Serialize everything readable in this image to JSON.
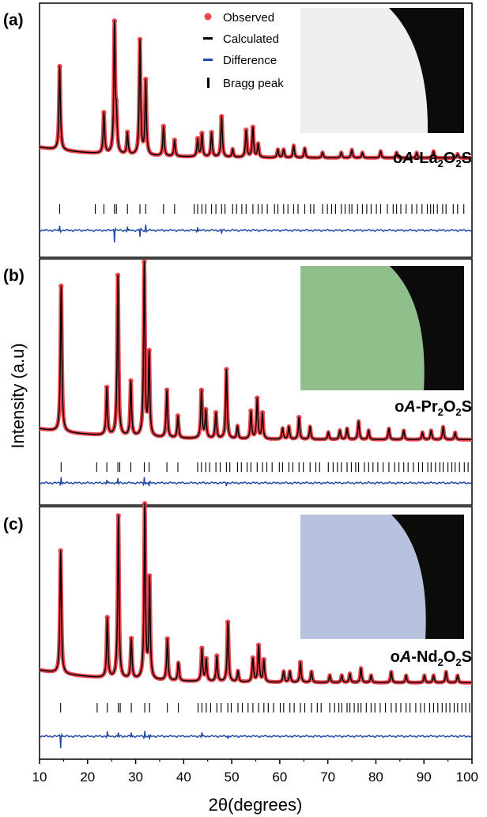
{
  "colors": {
    "observed": "#e8474f",
    "calculated": "#000000",
    "difference": "#2149a8",
    "bragg": "#000000",
    "frame": "#000000"
  },
  "figure": {
    "ylabel": "Intensity (a.u)",
    "xlabel": "2θ(degrees)",
    "xlim": [
      10,
      100
    ],
    "xticks": [
      "10",
      "20",
      "30",
      "40",
      "50",
      "60",
      "70",
      "80",
      "90",
      "100"
    ]
  },
  "legend": {
    "items": [
      {
        "label": "Observed",
        "marker": "dot",
        "color": "#e8474f"
      },
      {
        "label": "Calculated",
        "marker": "dash",
        "color": "#000000"
      },
      {
        "label": "Difference",
        "marker": "dash",
        "color": "#2149a8"
      },
      {
        "label": "Bragg peak",
        "marker": "tick",
        "color": "#000000"
      }
    ]
  },
  "chart_data": [
    {
      "type": "line",
      "panel_label": "(a)",
      "sample": {
        "prefix": "o",
        "italic": "A",
        "rest": "-La",
        "sub1": "2",
        "mid": "O",
        "sub2": "2",
        "end": "S"
      },
      "photo_color": "#efefef",
      "baseline": 0.08,
      "peaks": [
        {
          "x": 14.2,
          "h": 0.62
        },
        {
          "x": 23.4,
          "h": 0.3
        },
        {
          "x": 25.6,
          "h": 0.95
        },
        {
          "x": 26.0,
          "h": 0.25
        },
        {
          "x": 28.3,
          "h": 0.16
        },
        {
          "x": 30.9,
          "h": 0.85
        },
        {
          "x": 32.1,
          "h": 0.55
        },
        {
          "x": 35.8,
          "h": 0.22
        },
        {
          "x": 38.1,
          "h": 0.12
        },
        {
          "x": 42.9,
          "h": 0.13
        },
        {
          "x": 43.8,
          "h": 0.17
        },
        {
          "x": 45.8,
          "h": 0.18
        },
        {
          "x": 47.9,
          "h": 0.3
        },
        {
          "x": 50.2,
          "h": 0.06
        },
        {
          "x": 53.0,
          "h": 0.2
        },
        {
          "x": 54.4,
          "h": 0.22
        },
        {
          "x": 55.5,
          "h": 0.1
        },
        {
          "x": 59.6,
          "h": 0.06
        },
        {
          "x": 60.8,
          "h": 0.06
        },
        {
          "x": 62.9,
          "h": 0.09
        },
        {
          "x": 65.2,
          "h": 0.07
        },
        {
          "x": 68.9,
          "h": 0.04
        },
        {
          "x": 72.8,
          "h": 0.04
        },
        {
          "x": 75.0,
          "h": 0.06
        },
        {
          "x": 77.2,
          "h": 0.04
        },
        {
          "x": 81.0,
          "h": 0.05
        },
        {
          "x": 84.3,
          "h": 0.04
        },
        {
          "x": 88.5,
          "h": 0.04
        },
        {
          "x": 92.0,
          "h": 0.05
        },
        {
          "x": 97.0,
          "h": 0.03
        }
      ],
      "bragg": [
        14.2,
        21.6,
        23.4,
        25.6,
        26.0,
        28.3,
        30.9,
        32.1,
        35.8,
        38.1,
        42.2,
        42.9,
        43.8,
        44.6,
        45.8,
        46.7,
        47.9,
        48.6,
        50.2,
        51.0,
        52.1,
        53.0,
        54.4,
        55.5,
        56.3,
        57.4,
        58.9,
        59.6,
        60.8,
        61.7,
        62.9,
        63.8,
        65.2,
        66.4,
        67.1,
        68.9,
        69.9,
        70.8,
        71.6,
        72.8,
        73.6,
        74.5,
        75.0,
        76.2,
        77.2,
        78.1,
        79.0,
        80.1,
        81.0,
        82.4,
        83.6,
        84.3,
        85.2,
        86.3,
        87.5,
        88.5,
        89.6,
        90.7,
        91.4,
        92.0,
        92.8,
        93.9,
        94.6,
        96.1,
        97.0,
        98.3
      ],
      "diff_spikes": [
        {
          "x": 14.2,
          "a": 6
        },
        {
          "x": 25.6,
          "a": -14
        },
        {
          "x": 28.3,
          "a": 5
        },
        {
          "x": 30.9,
          "a": -8
        },
        {
          "x": 32.1,
          "a": 7
        },
        {
          "x": 42.9,
          "a": 5
        },
        {
          "x": 47.9,
          "a": -4
        }
      ]
    },
    {
      "type": "line",
      "panel_label": "(b)",
      "sample": {
        "prefix": "o",
        "italic": "A",
        "rest": "-Pr",
        "sub1": "2",
        "mid": "O",
        "sub2": "2",
        "end": "S"
      },
      "photo_color": "#8fbf8a",
      "baseline": 0.06,
      "peaks": [
        {
          "x": 14.5,
          "h": 0.8
        },
        {
          "x": 24.0,
          "h": 0.26
        },
        {
          "x": 26.3,
          "h": 0.88
        },
        {
          "x": 29.0,
          "h": 0.3
        },
        {
          "x": 31.8,
          "h": 0.95
        },
        {
          "x": 32.8,
          "h": 0.45
        },
        {
          "x": 36.5,
          "h": 0.26
        },
        {
          "x": 38.8,
          "h": 0.12
        },
        {
          "x": 43.7,
          "h": 0.26
        },
        {
          "x": 44.6,
          "h": 0.15
        },
        {
          "x": 46.7,
          "h": 0.14
        },
        {
          "x": 48.9,
          "h": 0.38
        },
        {
          "x": 51.2,
          "h": 0.07
        },
        {
          "x": 54.0,
          "h": 0.15
        },
        {
          "x": 55.3,
          "h": 0.22
        },
        {
          "x": 56.4,
          "h": 0.14
        },
        {
          "x": 60.6,
          "h": 0.06
        },
        {
          "x": 61.9,
          "h": 0.07
        },
        {
          "x": 64.0,
          "h": 0.12
        },
        {
          "x": 66.3,
          "h": 0.07
        },
        {
          "x": 70.1,
          "h": 0.04
        },
        {
          "x": 72.5,
          "h": 0.05
        },
        {
          "x": 74.0,
          "h": 0.06
        },
        {
          "x": 76.4,
          "h": 0.1
        },
        {
          "x": 78.5,
          "h": 0.05
        },
        {
          "x": 82.7,
          "h": 0.06
        },
        {
          "x": 85.8,
          "h": 0.05
        },
        {
          "x": 89.7,
          "h": 0.04
        },
        {
          "x": 91.5,
          "h": 0.05
        },
        {
          "x": 94.0,
          "h": 0.07
        },
        {
          "x": 96.5,
          "h": 0.04
        }
      ],
      "bragg": [
        14.5,
        21.9,
        24.0,
        26.3,
        26.7,
        29.0,
        31.8,
        32.8,
        36.5,
        38.8,
        42.9,
        43.7,
        44.6,
        45.4,
        46.7,
        47.6,
        48.9,
        49.6,
        51.2,
        52.0,
        53.2,
        54.0,
        55.3,
        56.4,
        57.3,
        58.4,
        59.9,
        60.6,
        61.9,
        62.7,
        64.0,
        64.9,
        66.3,
        67.5,
        68.3,
        70.1,
        71.1,
        72.0,
        72.8,
        74.0,
        74.9,
        75.8,
        76.4,
        77.6,
        78.5,
        79.4,
        80.4,
        81.5,
        82.7,
        83.9,
        84.8,
        85.8,
        86.7,
        87.8,
        88.9,
        89.7,
        90.8,
        91.5,
        92.4,
        93.3,
        94.0,
        95.0,
        95.8,
        96.5,
        97.4,
        98.4,
        99.2
      ],
      "diff_spikes": [
        {
          "x": 14.5,
          "a": 8
        },
        {
          "x": 24.0,
          "a": 4
        },
        {
          "x": 26.3,
          "a": 6
        },
        {
          "x": 31.8,
          "a": 8
        },
        {
          "x": 32.8,
          "a": -5
        },
        {
          "x": 48.9,
          "a": -3
        }
      ]
    },
    {
      "type": "line",
      "panel_label": "(c)",
      "sample": {
        "prefix": "o",
        "italic": "A",
        "rest": "-Nd",
        "sub1": "2",
        "mid": "O",
        "sub2": "2",
        "end": "S"
      },
      "photo_color": "#b6c2de",
      "baseline": 0.07,
      "peaks": [
        {
          "x": 14.4,
          "h": 0.68
        },
        {
          "x": 24.1,
          "h": 0.33
        },
        {
          "x": 26.4,
          "h": 0.9
        },
        {
          "x": 29.1,
          "h": 0.22
        },
        {
          "x": 31.9,
          "h": 0.96
        },
        {
          "x": 32.9,
          "h": 0.55
        },
        {
          "x": 36.6,
          "h": 0.23
        },
        {
          "x": 38.9,
          "h": 0.1
        },
        {
          "x": 43.8,
          "h": 0.18
        },
        {
          "x": 44.7,
          "h": 0.12
        },
        {
          "x": 46.9,
          "h": 0.14
        },
        {
          "x": 49.2,
          "h": 0.33
        },
        {
          "x": 51.3,
          "h": 0.06
        },
        {
          "x": 54.4,
          "h": 0.13
        },
        {
          "x": 55.6,
          "h": 0.2
        },
        {
          "x": 56.7,
          "h": 0.12
        },
        {
          "x": 60.8,
          "h": 0.06
        },
        {
          "x": 62.1,
          "h": 0.06
        },
        {
          "x": 64.3,
          "h": 0.11
        },
        {
          "x": 66.6,
          "h": 0.06
        },
        {
          "x": 70.4,
          "h": 0.04
        },
        {
          "x": 72.9,
          "h": 0.04
        },
        {
          "x": 74.6,
          "h": 0.05
        },
        {
          "x": 76.9,
          "h": 0.08
        },
        {
          "x": 79.0,
          "h": 0.04
        },
        {
          "x": 83.2,
          "h": 0.06
        },
        {
          "x": 86.3,
          "h": 0.04
        },
        {
          "x": 90.1,
          "h": 0.04
        },
        {
          "x": 92.0,
          "h": 0.04
        },
        {
          "x": 94.6,
          "h": 0.06
        },
        {
          "x": 97.0,
          "h": 0.04
        }
      ],
      "bragg": [
        14.4,
        22.0,
        24.1,
        26.4,
        26.8,
        29.1,
        31.9,
        32.9,
        36.6,
        38.9,
        43.0,
        43.8,
        44.7,
        45.6,
        46.9,
        47.8,
        49.2,
        49.9,
        51.3,
        52.2,
        53.4,
        54.4,
        55.6,
        56.7,
        57.6,
        58.7,
        60.1,
        60.8,
        62.1,
        63.0,
        64.3,
        65.2,
        66.6,
        67.8,
        68.6,
        70.4,
        71.4,
        72.3,
        72.9,
        74.0,
        74.6,
        75.5,
        76.3,
        76.9,
        78.0,
        79.0,
        79.8,
        80.9,
        82.0,
        83.2,
        84.2,
        85.2,
        86.3,
        87.1,
        88.3,
        89.3,
        90.1,
        91.2,
        92.0,
        92.9,
        93.8,
        94.6,
        95.4,
        96.3,
        97.0,
        97.9,
        98.7,
        99.5
      ],
      "diff_spikes": [
        {
          "x": 14.4,
          "a": -14
        },
        {
          "x": 24.1,
          "a": 6
        },
        {
          "x": 26.4,
          "a": 5
        },
        {
          "x": 29.1,
          "a": 5
        },
        {
          "x": 31.9,
          "a": 7
        },
        {
          "x": 32.9,
          "a": -5
        },
        {
          "x": 43.8,
          "a": 5
        },
        {
          "x": 49.2,
          "a": -3
        }
      ]
    }
  ]
}
